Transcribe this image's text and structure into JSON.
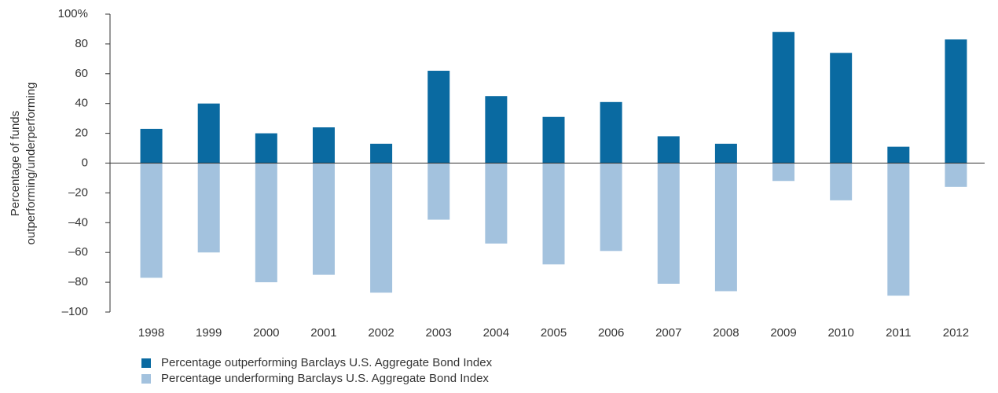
{
  "chart_data": {
    "type": "bar",
    "y_label": [
      "Percentage of funds",
      "outperforming/underperforming"
    ],
    "categories": [
      "1998",
      "1999",
      "2000",
      "2001",
      "2002",
      "2003",
      "2004",
      "2005",
      "2006",
      "2007",
      "2008",
      "2009",
      "2010",
      "2011",
      "2012"
    ],
    "series": [
      {
        "name": "Percentage outperforming Barclays U.S. Aggregate Bond Index",
        "color": "#0a6aa1",
        "values": [
          23,
          40,
          20,
          24,
          13,
          62,
          45,
          31,
          41,
          18,
          13,
          88,
          74,
          11,
          83
        ]
      },
      {
        "name": "Percentage underforming Barclays U.S. Aggregate Bond Index",
        "color": "#a3c2de",
        "values": [
          -77,
          -60,
          -80,
          -75,
          -87,
          -38,
          -54,
          -68,
          -59,
          -81,
          -86,
          -12,
          -25,
          -89,
          -16
        ]
      }
    ],
    "ylim": [
      -100,
      100
    ],
    "yticks": [
      {
        "value": -100,
        "label": "–100"
      },
      {
        "value": -80,
        "label": "–80"
      },
      {
        "value": -60,
        "label": "–60"
      },
      {
        "value": -40,
        "label": "–40"
      },
      {
        "value": -20,
        "label": "–20"
      },
      0,
      20,
      40,
      60,
      80,
      {
        "value": 100,
        "label": "100%"
      }
    ],
    "grid": false
  }
}
